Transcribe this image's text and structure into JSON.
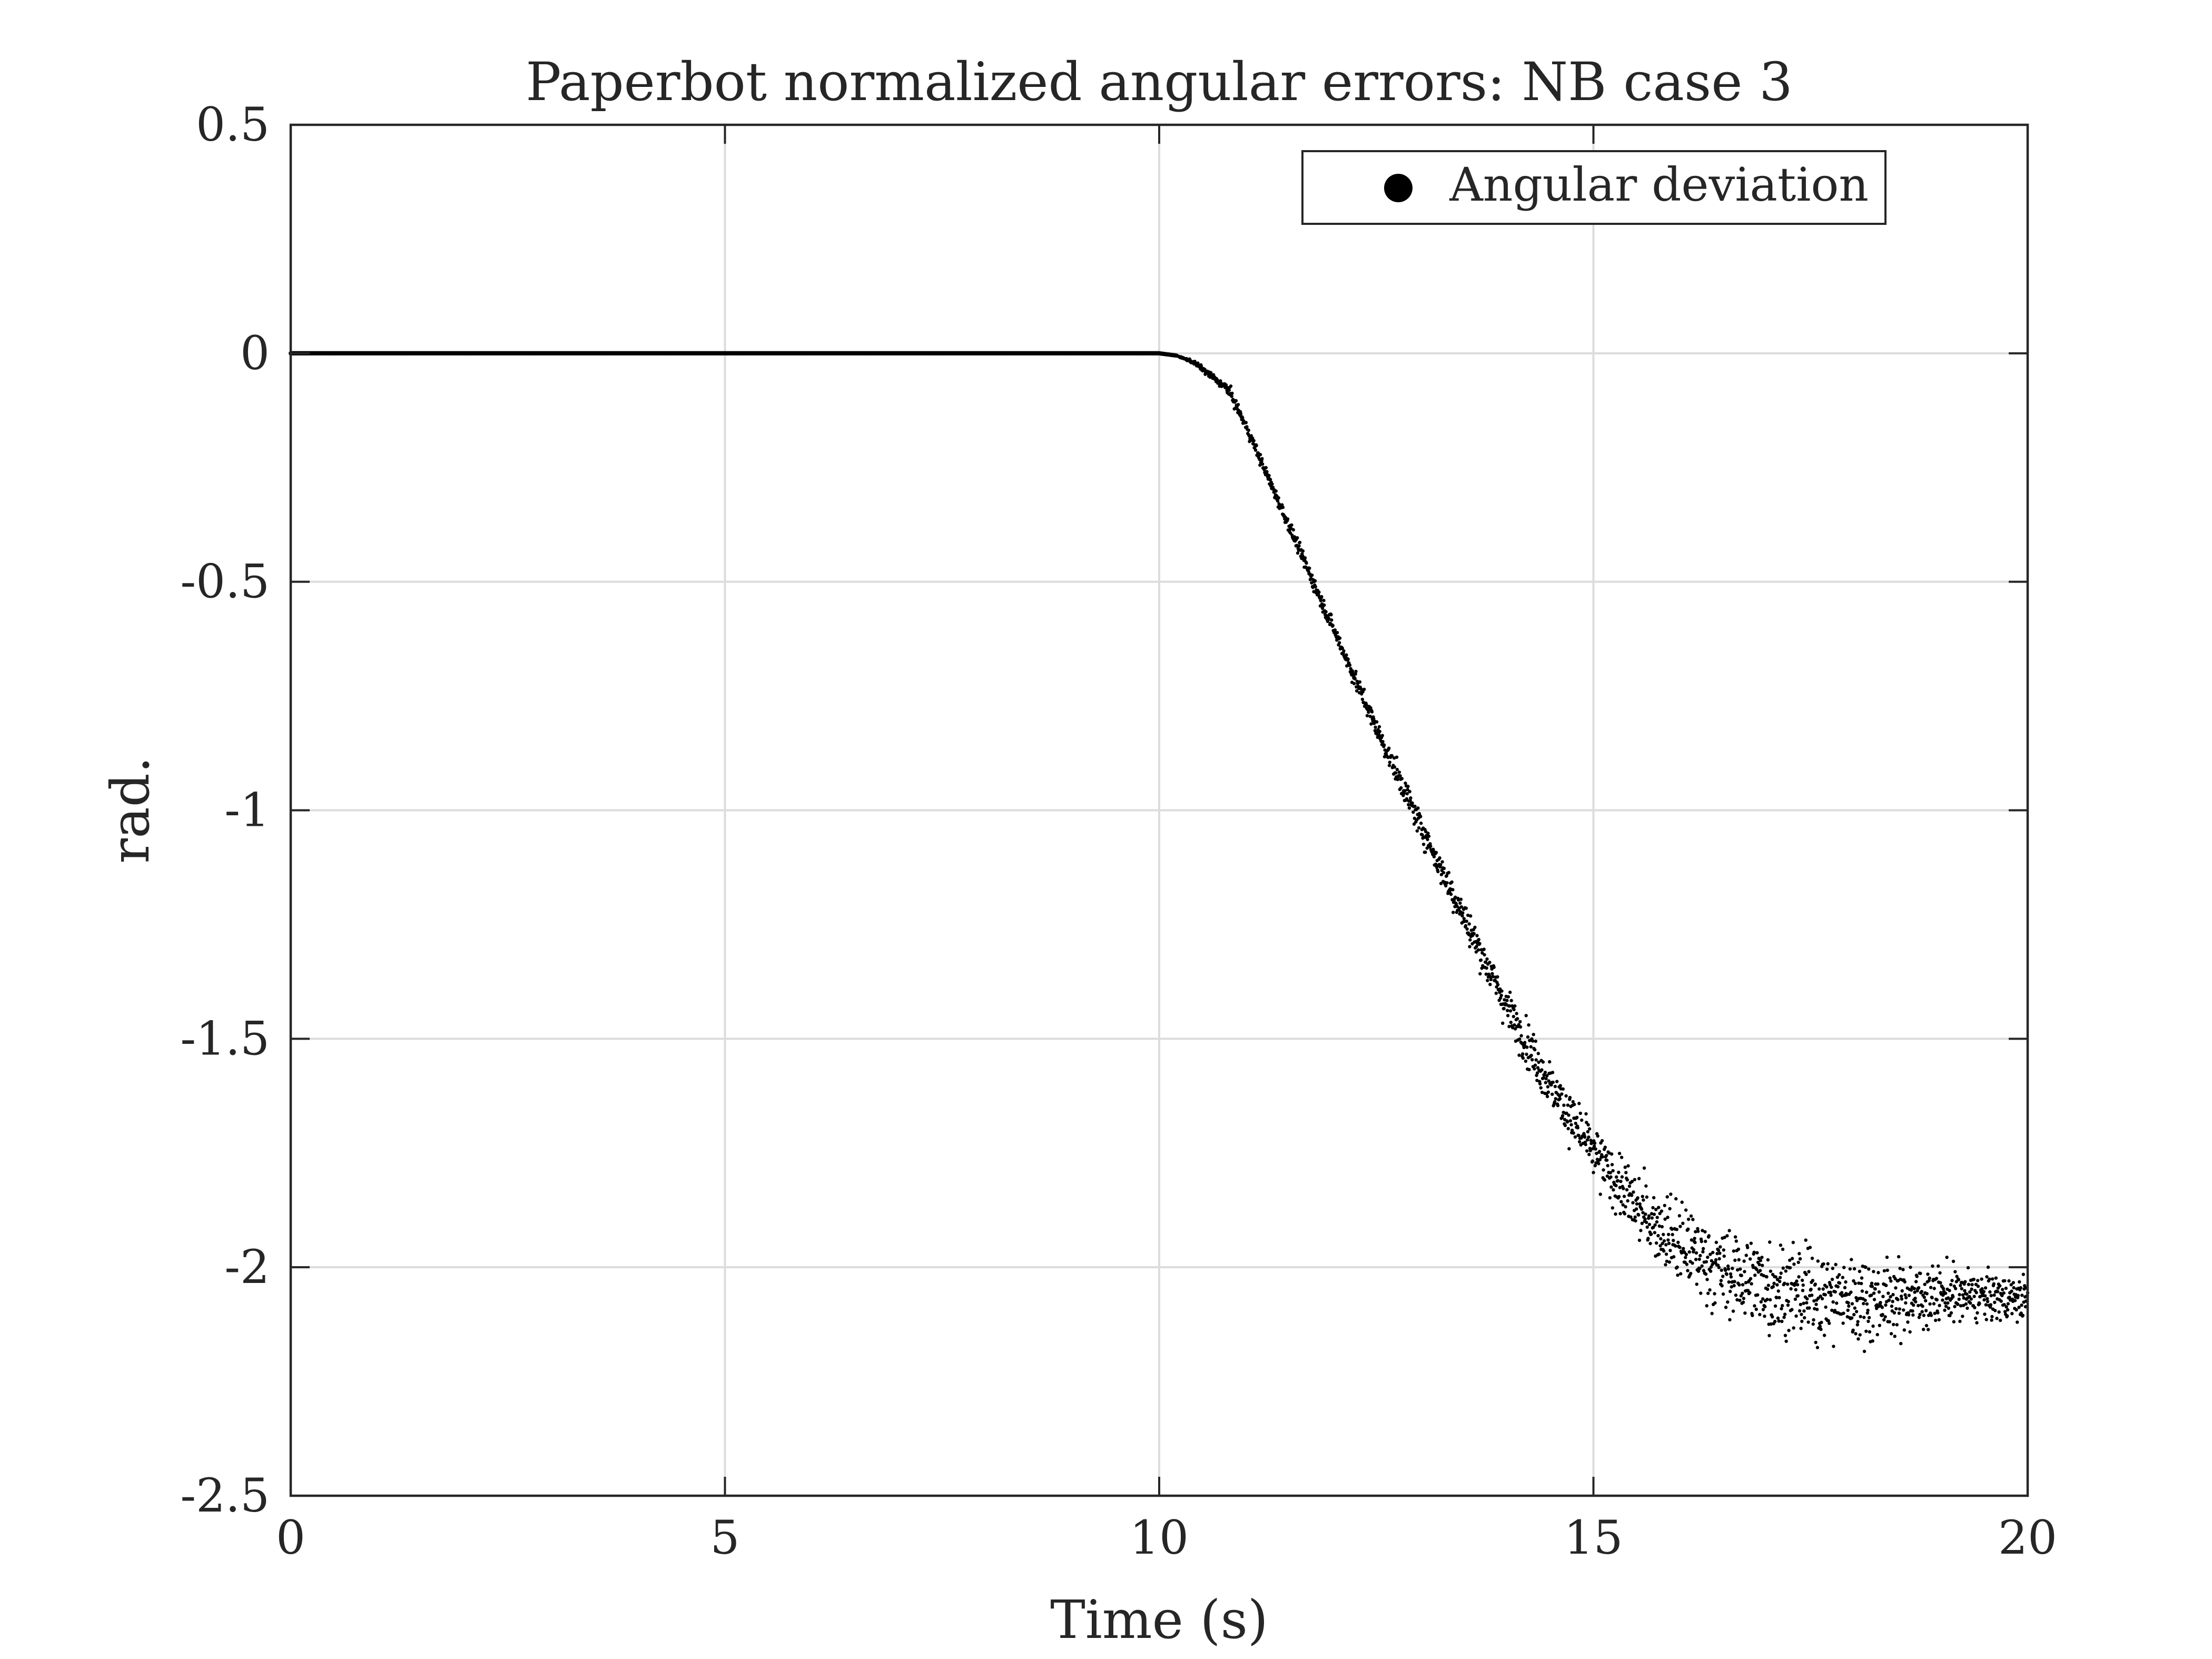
{
  "chart_data": {
    "type": "scatter",
    "title": "Paperbot normalized angular errors: NB case 3",
    "xlabel": "Time (s)",
    "ylabel": "rad.",
    "xlim": [
      0,
      20
    ],
    "ylim": [
      -2.5,
      0.5
    ],
    "x_ticks": [
      0,
      5,
      10,
      15,
      20
    ],
    "y_ticks": [
      0.5,
      0,
      -0.5,
      -1,
      -1.5,
      -2,
      -2.5
    ],
    "x_tick_labels": [
      "0",
      "5",
      "10",
      "15",
      "20"
    ],
    "y_tick_labels": [
      "0.5",
      "0",
      "-0.5",
      "-1",
      "-1.5",
      "-2",
      "-2.5"
    ],
    "grid": true,
    "legend": {
      "location": "top-right",
      "entries": [
        "Angular deviation"
      ]
    },
    "series": [
      {
        "name": "Angular deviation",
        "color": "#000000",
        "marker": "dot",
        "x": [
          0,
          2,
          4,
          6,
          8,
          10,
          10.2,
          10.4,
          10.6,
          10.8,
          11.0,
          11.5,
          12.0,
          12.5,
          13.0,
          13.5,
          14.0,
          14.5,
          15.0,
          15.5,
          16.0,
          16.5,
          17.0,
          17.5,
          18.0,
          18.5,
          19.0,
          19.5,
          20.0
        ],
        "y": [
          0,
          0,
          0,
          0,
          0,
          0,
          -0.005,
          -0.02,
          -0.05,
          -0.08,
          -0.16,
          -0.38,
          -0.6,
          -0.82,
          -1.03,
          -1.23,
          -1.43,
          -1.6,
          -1.75,
          -1.87,
          -1.95,
          -2.01,
          -2.04,
          -2.06,
          -2.07,
          -2.07,
          -2.06,
          -2.065,
          -2.07
        ],
        "spread": [
          0,
          0,
          0,
          0,
          0,
          0,
          0,
          0.003,
          0.005,
          0.008,
          0.008,
          0.01,
          0.012,
          0.015,
          0.02,
          0.025,
          0.03,
          0.035,
          0.04,
          0.05,
          0.06,
          0.065,
          0.07,
          0.07,
          0.065,
          0.055,
          0.045,
          0.035,
          0.03
        ]
      }
    ]
  }
}
